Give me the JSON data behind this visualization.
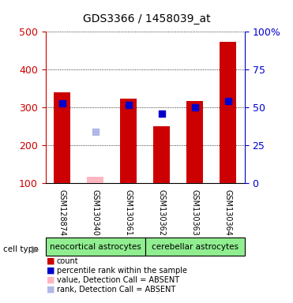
{
  "title": "GDS3366 / 1458039_at",
  "samples": [
    "GSM128874",
    "GSM130340",
    "GSM130361",
    "GSM130362",
    "GSM130363",
    "GSM130364"
  ],
  "count_values": [
    340,
    null,
    323,
    250,
    317,
    473
  ],
  "percentile_values": [
    312,
    null,
    307,
    285,
    301,
    318
  ],
  "absent_value_values": [
    null,
    118,
    null,
    null,
    null,
    null
  ],
  "absent_rank_values": [
    null,
    237,
    null,
    null,
    null,
    null
  ],
  "ylim": [
    100,
    500
  ],
  "yticks": [
    100,
    200,
    300,
    400,
    500
  ],
  "right_ytick_labels": [
    "0",
    "25",
    "50",
    "75",
    "100%"
  ],
  "right_ytick_vals": [
    100,
    200,
    300,
    400,
    500
  ],
  "bar_color": "#cc0000",
  "percentile_color": "#0000cc",
  "absent_value_color": "#ffb6c1",
  "absent_rank_color": "#b0b8e8",
  "grid_color": "#000000",
  "bg_color": "#ffffff",
  "left_axis_color": "#cc0000",
  "right_axis_color": "#0000cc",
  "bar_width": 0.5,
  "marker_size": 5.5,
  "label_bg": "#d3d3d3",
  "cell_color": "#90ee90",
  "legend_items": [
    {
      "label": "count",
      "color": "#cc0000"
    },
    {
      "label": "percentile rank within the sample",
      "color": "#0000cc"
    },
    {
      "label": "value, Detection Call = ABSENT",
      "color": "#ffb6c1"
    },
    {
      "label": "rank, Detection Call = ABSENT",
      "color": "#b0b8e8"
    }
  ]
}
